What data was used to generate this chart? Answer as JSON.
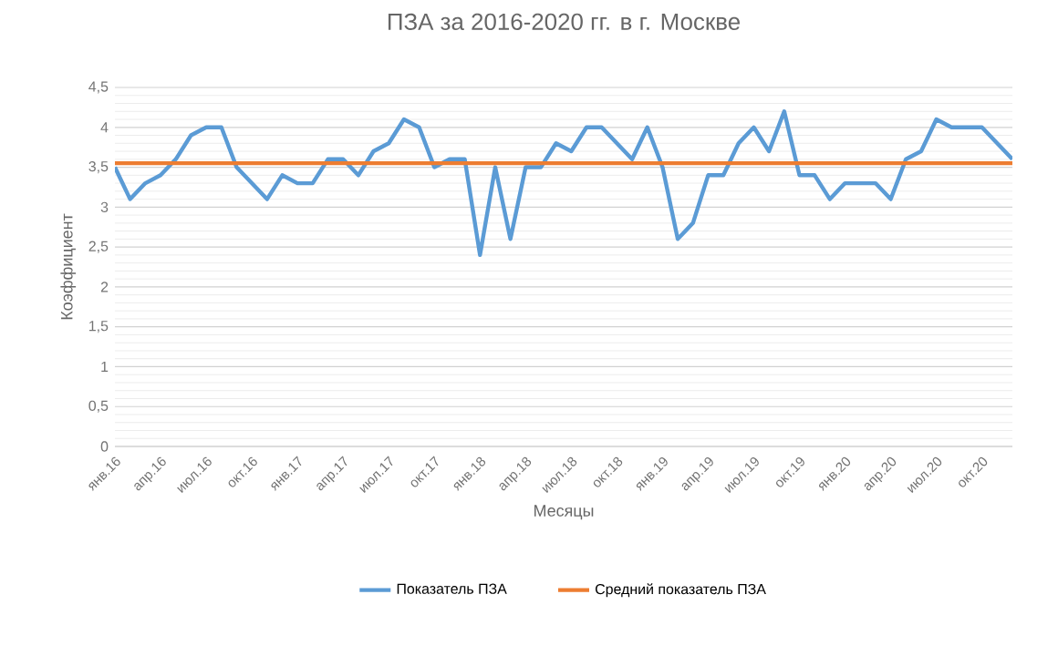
{
  "chart_data": {
    "type": "line",
    "title": "ПЗА за 2016-2020 гг. в г. Москве",
    "xlabel": "Месяцы",
    "ylabel": "Коэффициент",
    "categories": [
      "янв.16",
      null,
      null,
      "апр.16",
      null,
      null,
      "июл.16",
      null,
      null,
      "окт.16",
      null,
      null,
      "янв.17",
      null,
      null,
      "апр.17",
      null,
      null,
      "июл.17",
      null,
      null,
      "окт.17",
      null,
      null,
      "янв.18",
      null,
      null,
      "апр.18",
      null,
      null,
      "июл.18",
      null,
      null,
      "окт.18",
      null,
      null,
      "янв.19",
      null,
      null,
      "апр.19",
      null,
      null,
      "июл.19",
      null,
      null,
      "окт.19",
      null,
      null,
      "янв.20",
      null,
      null,
      "апр.20",
      null,
      null,
      "июл.20",
      null,
      null,
      "окт.20",
      null,
      null
    ],
    "series": [
      {
        "name": "Показатель ПЗА",
        "color": "#5b9bd5",
        "values": [
          3.5,
          3.1,
          3.3,
          3.4,
          3.6,
          3.9,
          4.0,
          4.0,
          3.5,
          3.3,
          3.1,
          3.4,
          3.3,
          3.3,
          3.6,
          3.6,
          3.4,
          3.7,
          3.8,
          4.1,
          4.0,
          3.5,
          3.6,
          3.6,
          2.4,
          3.5,
          2.6,
          3.5,
          3.5,
          3.8,
          3.7,
          4.0,
          4.0,
          3.8,
          3.6,
          4.0,
          3.5,
          2.6,
          2.8,
          3.4,
          3.4,
          3.8,
          4.0,
          3.7,
          4.2,
          3.4,
          3.4,
          3.1,
          3.3,
          3.3,
          3.3,
          3.1,
          3.6,
          3.7,
          4.1,
          4.0,
          4.0,
          4.0,
          3.8,
          3.6
        ]
      },
      {
        "name": "Средний показатель ПЗА",
        "color": "#ed7d31",
        "values": [
          3.55,
          3.55,
          3.55,
          3.55,
          3.55,
          3.55,
          3.55,
          3.55,
          3.55,
          3.55,
          3.55,
          3.55,
          3.55,
          3.55,
          3.55,
          3.55,
          3.55,
          3.55,
          3.55,
          3.55,
          3.55,
          3.55,
          3.55,
          3.55,
          3.55,
          3.55,
          3.55,
          3.55,
          3.55,
          3.55,
          3.55,
          3.55,
          3.55,
          3.55,
          3.55,
          3.55,
          3.55,
          3.55,
          3.55,
          3.55,
          3.55,
          3.55,
          3.55,
          3.55,
          3.55,
          3.55,
          3.55,
          3.55,
          3.55,
          3.55,
          3.55,
          3.55,
          3.55,
          3.55,
          3.55,
          3.55,
          3.55,
          3.55,
          3.55,
          3.55
        ]
      }
    ],
    "ylim": [
      0,
      4.5
    ],
    "yticks": [
      0,
      {
        "value": 0.5,
        "label": "0,5"
      },
      1,
      {
        "value": 1.5,
        "label": "1,5"
      },
      2,
      {
        "value": 2.5,
        "label": "2,5"
      },
      3,
      {
        "value": 3.5,
        "label": "3,5"
      },
      4,
      {
        "value": 4.5,
        "label": "4,5"
      }
    ],
    "grid": "y",
    "legend": "bottom",
    "marker": "none",
    "line_style": "solid"
  }
}
